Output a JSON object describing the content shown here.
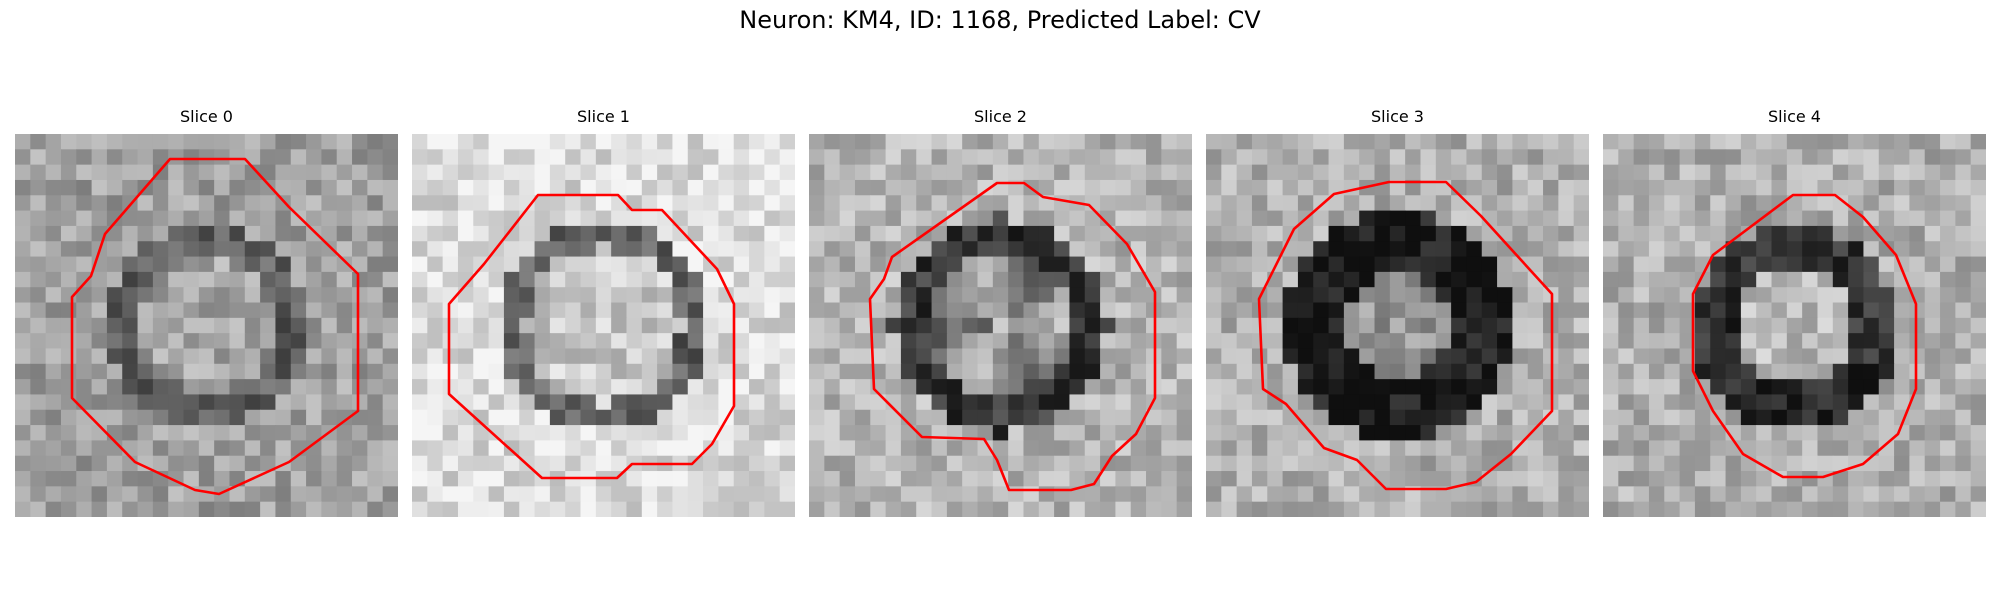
{
  "figure": {
    "title": "Neuron: KM4, ID: 1168, Predicted Label: CV"
  },
  "panels": [
    {
      "title": "Slice 0",
      "kind": "hollow-ring"
    },
    {
      "title": "Slice 1",
      "kind": "bright-cell"
    },
    {
      "title": "Slice 2",
      "kind": "dark-ring"
    },
    {
      "title": "Slice 3",
      "kind": "very-dark-ring"
    },
    {
      "title": "Slice 4",
      "kind": "partial-ring"
    }
  ],
  "colors": {
    "contour": "#ff0000",
    "background": "#ffffff"
  },
  "colormap": "grayscale"
}
